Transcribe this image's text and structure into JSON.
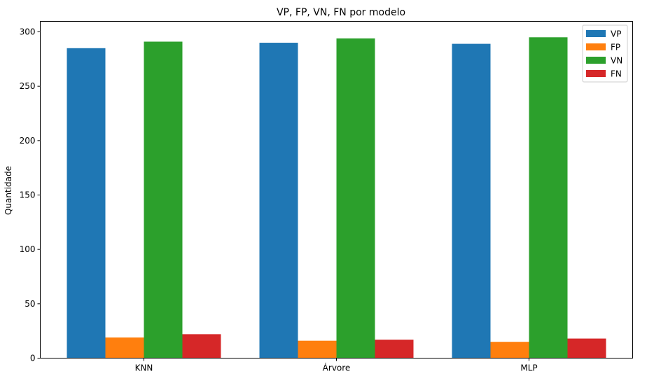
{
  "chart_data": {
    "type": "bar",
    "title": "VP, FP, VN, FN por modelo",
    "xlabel": "",
    "ylabel": "Quantidade",
    "categories": [
      "KNN",
      "Árvore",
      "MLP"
    ],
    "series": [
      {
        "name": "VP",
        "color": "#1f77b4",
        "values": [
          285,
          290,
          289
        ]
      },
      {
        "name": "FP",
        "color": "#ff7f0e",
        "values": [
          19,
          16,
          15
        ]
      },
      {
        "name": "VN",
        "color": "#2ca02c",
        "values": [
          291,
          294,
          295
        ]
      },
      {
        "name": "FN",
        "color": "#d62728",
        "values": [
          22,
          17,
          18
        ]
      }
    ],
    "ylim": [
      0,
      300
    ],
    "yticks": [
      "0",
      "50",
      "100",
      "150",
      "200",
      "250",
      "300"
    ],
    "grid": false,
    "legend_position": "top-right"
  }
}
